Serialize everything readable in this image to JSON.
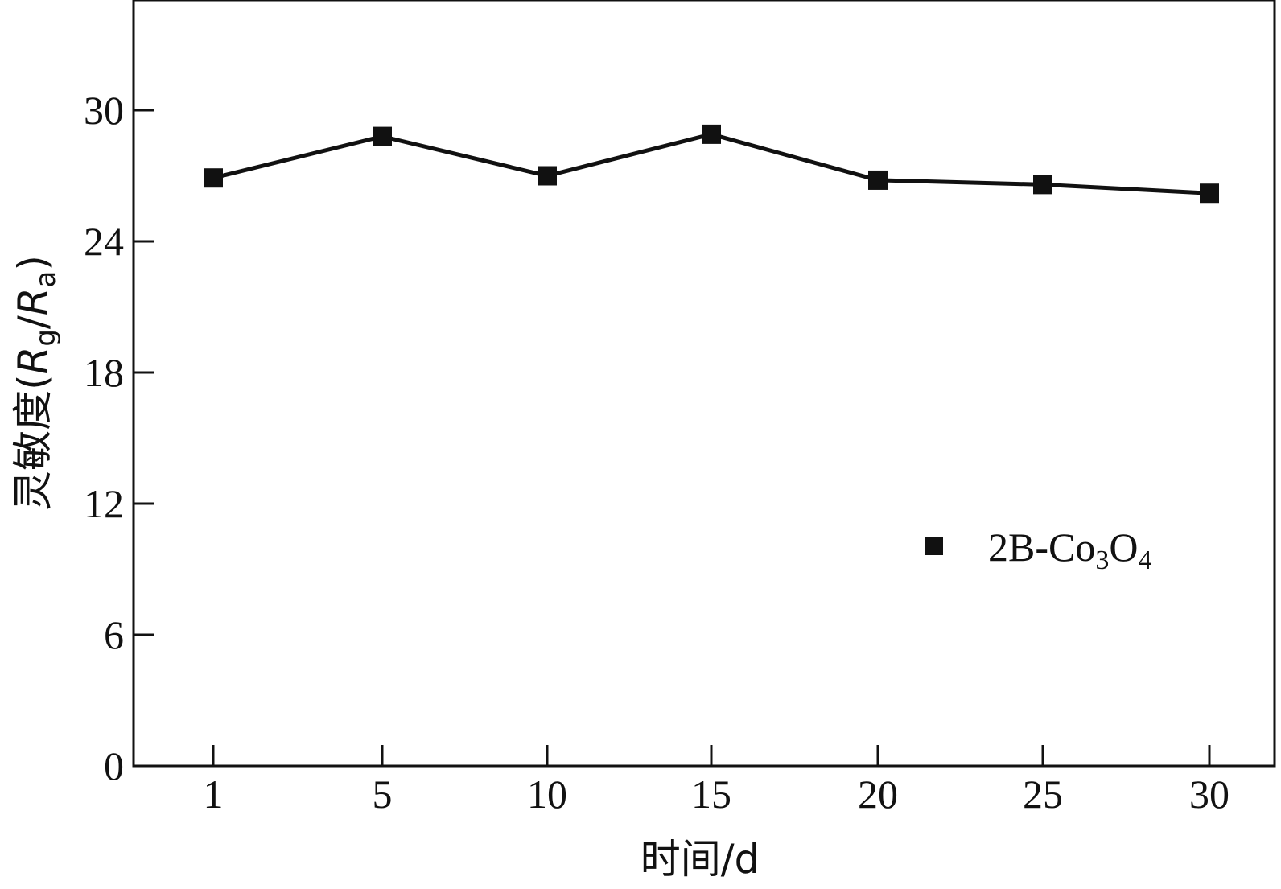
{
  "chart_data": {
    "type": "line",
    "title": "",
    "xlabel": "时间/d",
    "ylabel": {
      "prefix": "灵敏度(",
      "R1": "R",
      "sub1": "g",
      "slash": "/",
      "R2": "R",
      "sub2": "a",
      "suffix": ")"
    },
    "x_ticks": [
      "1",
      "5",
      "10",
      "15",
      "20",
      "25",
      "30"
    ],
    "y_ticks": [
      0,
      6,
      12,
      18,
      24,
      30
    ],
    "ylim": [
      0,
      35
    ],
    "grid": false,
    "legend_position": "right",
    "series": [
      {
        "name": "2B-Co3O4",
        "marker": "square",
        "color": "#111111",
        "x": [
          1,
          5,
          10,
          15,
          20,
          25,
          30
        ],
        "y": [
          26.9,
          28.8,
          27.0,
          28.9,
          26.8,
          26.6,
          26.2
        ]
      }
    ]
  },
  "legend": {
    "base": "2B-Co",
    "sub1": "3",
    "mid": "O",
    "sub2": "4"
  }
}
